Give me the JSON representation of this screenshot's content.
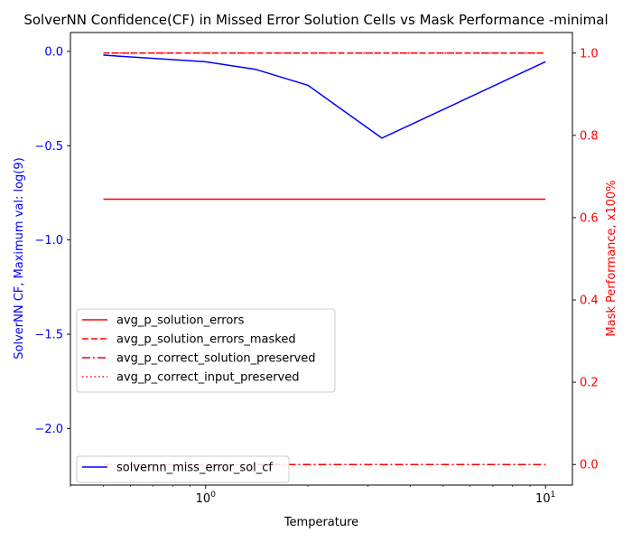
{
  "chart_data": {
    "type": "line",
    "title": "SolverNN Confidence(CF) in Missed Error Solution Cells vs Mask Performance -minimal",
    "xlabel": "Temperature",
    "xscale": "log",
    "xlim": [
      0.4,
      12
    ],
    "xticks": [
      {
        "value": 1,
        "base": "10",
        "exp": "0"
      },
      {
        "value": 10,
        "base": "10",
        "exp": "1"
      }
    ],
    "left_axis": {
      "label": "SolverNN CF, Maximum val: log(9)",
      "color": "#0000ff",
      "ylim": [
        -2.3,
        0.1
      ],
      "ticks": [
        {
          "value": 0.0,
          "label": "0.0"
        },
        {
          "value": -0.5,
          "label": "−0.5"
        },
        {
          "value": -1.0,
          "label": "−1.0"
        },
        {
          "value": -1.5,
          "label": "−1.5"
        },
        {
          "value": -2.0,
          "label": "−2.0"
        }
      ]
    },
    "right_axis": {
      "label": "Mask Performance, x100%",
      "color": "#ff0000",
      "ylim": [
        -0.05,
        1.05
      ],
      "ticks": [
        {
          "value": 0.0,
          "label": "0.0"
        },
        {
          "value": 0.2,
          "label": "0.2"
        },
        {
          "value": 0.4,
          "label": "0.4"
        },
        {
          "value": 0.6,
          "label": "0.6"
        },
        {
          "value": 0.8,
          "label": "0.8"
        },
        {
          "value": 1.0,
          "label": "1.0"
        }
      ]
    },
    "left_series": [
      {
        "name": "solvernn_miss_error_sol_cf",
        "color": "#0000ff",
        "dash": "solid",
        "x": [
          0.5,
          1.0,
          1.4,
          2.0,
          3.3,
          10.0
        ],
        "y": [
          -0.02,
          -0.055,
          -0.095,
          -0.18,
          -0.46,
          -0.055
        ]
      }
    ],
    "right_series": [
      {
        "name": "avg_p_solution_errors",
        "color": "#ff0000",
        "dash": "solid",
        "x": [
          0.5,
          10.0
        ],
        "y": [
          0.645,
          0.645
        ]
      },
      {
        "name": "avg_p_solution_errors_masked",
        "color": "#ff0000",
        "dash": "dashed",
        "x": [
          0.5,
          10.0
        ],
        "y": [
          1.0,
          1.0
        ]
      },
      {
        "name": "avg_p_correct_solution_preserved",
        "color": "#ff0000",
        "dash": "dashdot",
        "x": [
          0.5,
          10.0
        ],
        "y": [
          0.0,
          0.0
        ]
      },
      {
        "name": "avg_p_correct_input_preserved",
        "color": "#ff0000",
        "dash": "dotted",
        "x": [
          0.5,
          10.0
        ],
        "y": [
          1.0,
          1.0
        ]
      }
    ],
    "legends": [
      {
        "placement": "center-left",
        "axis": "right"
      },
      {
        "placement": "lower-left",
        "axis": "left"
      }
    ],
    "grid": false
  }
}
